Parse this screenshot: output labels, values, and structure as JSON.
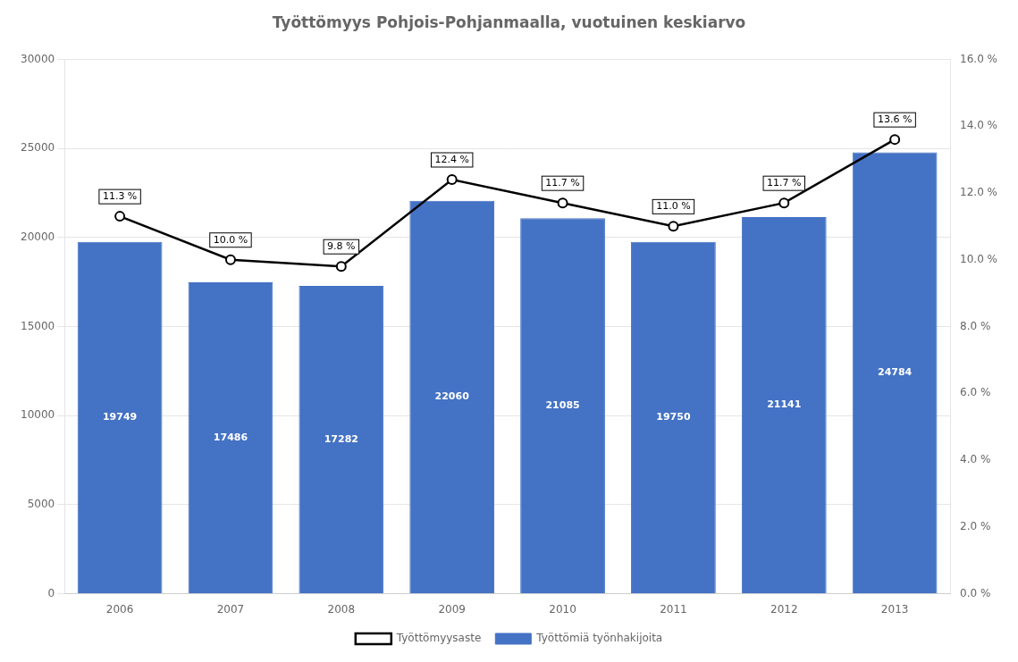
{
  "chart_data": {
    "type": "bar",
    "title": "Työttömyys Pohjois-Pohjanmaalla, vuotuinen keskiarvo",
    "categories": [
      "2006",
      "2007",
      "2008",
      "2009",
      "2010",
      "2011",
      "2012",
      "2013"
    ],
    "series": [
      {
        "name": "Työttömiä työnhakijoita",
        "type": "bar",
        "color": "#4472C4",
        "values": [
          19749,
          17486,
          17282,
          22060,
          21085,
          19750,
          21141,
          24784
        ]
      },
      {
        "name": "Työttömyysaste",
        "type": "line",
        "axis": "y2",
        "color": "#000000",
        "marker": "circle",
        "values": [
          11.3,
          10.0,
          9.8,
          12.4,
          11.7,
          11.0,
          11.7,
          13.6
        ],
        "value_labels": [
          "11.3 %",
          "10.0 %",
          "9.8 %",
          "12.4 %",
          "11.7 %",
          "11.0 %",
          "11.7 %",
          "13.6 %"
        ]
      }
    ],
    "ylim": [
      0,
      30000
    ],
    "yticks": [
      0,
      5000,
      10000,
      15000,
      20000,
      25000,
      30000
    ],
    "y2lim": [
      0,
      16.0
    ],
    "y2ticks": [
      {
        "value": 0.0,
        "label": "0.0 %"
      },
      {
        "value": 2.0,
        "label": "2.0 %"
      },
      {
        "value": 4.0,
        "label": "4.0 %"
      },
      {
        "value": 6.0,
        "label": "6.0 %"
      },
      {
        "value": 8.0,
        "label": "8.0 %"
      },
      {
        "value": 10.0,
        "label": "10.0 %"
      },
      {
        "value": 12.0,
        "label": "12.0 %"
      },
      {
        "value": 14.0,
        "label": "14.0 %"
      },
      {
        "value": 16.0,
        "label": "16.0 %"
      }
    ],
    "grid": true,
    "legend": "bottom",
    "data_labels": true
  }
}
